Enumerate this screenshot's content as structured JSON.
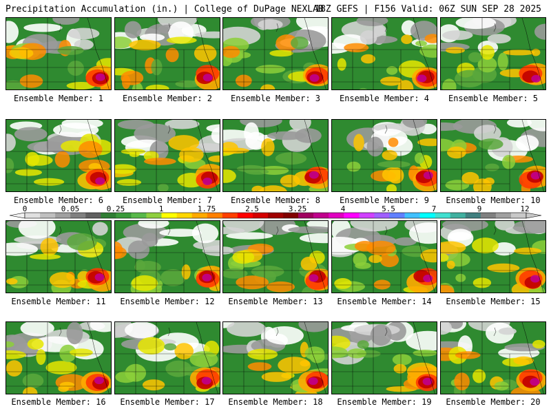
{
  "header": {
    "left": "Precipitation Accumulation (in.) | College of DuPage NEXLAB",
    "right": "18Z GEFS | F156 Valid: 06Z SUN SEP 28 2025"
  },
  "legend": {
    "tick_labels": [
      "0",
      "0.05",
      "0.25",
      "1",
      "1.75",
      "2.5",
      "3.25",
      "4",
      "5.5",
      "7",
      "9",
      "12"
    ],
    "colors": [
      "#e0e0e0",
      "#bfbfbf",
      "#a0a0a0",
      "#808080",
      "#606060",
      "#2e7d32",
      "#3a9a3a",
      "#58b84a",
      "#8fcf3f",
      "#ffff00",
      "#ffd700",
      "#ffaa00",
      "#ff8000",
      "#ff4000",
      "#ff0000",
      "#d40000",
      "#a00000",
      "#800000",
      "#a00060",
      "#c0008c",
      "#e000c0",
      "#ff00ff",
      "#d040ff",
      "#a060ff",
      "#6080ff",
      "#40c0ff",
      "#00ffff",
      "#40e0d0",
      "#40b0a0",
      "#408080",
      "#808080",
      "#a0a0a0",
      "#c8c8c8"
    ]
  },
  "panels": [
    {
      "label": "Ensemble Member: 1"
    },
    {
      "label": "Ensemble Member: 2"
    },
    {
      "label": "Ensemble Member: 3"
    },
    {
      "label": "Ensemble Member: 4"
    },
    {
      "label": "Ensemble Member: 5"
    },
    {
      "label": "Ensemble Member: 6"
    },
    {
      "label": "Ensemble Member: 7"
    },
    {
      "label": "Ensemble Member: 8"
    },
    {
      "label": "Ensemble Member: 9"
    },
    {
      "label": "Ensemble Member: 10"
    },
    {
      "label": "Ensemble Member: 11"
    },
    {
      "label": "Ensemble Member: 12"
    },
    {
      "label": "Ensemble Member: 13"
    },
    {
      "label": "Ensemble Member: 14"
    },
    {
      "label": "Ensemble Member: 15"
    },
    {
      "label": "Ensemble Member: 16"
    },
    {
      "label": "Ensemble Member: 17"
    },
    {
      "label": "Ensemble Member: 18"
    },
    {
      "label": "Ensemble Member: 19"
    },
    {
      "label": "Ensemble Member: 20"
    }
  ]
}
